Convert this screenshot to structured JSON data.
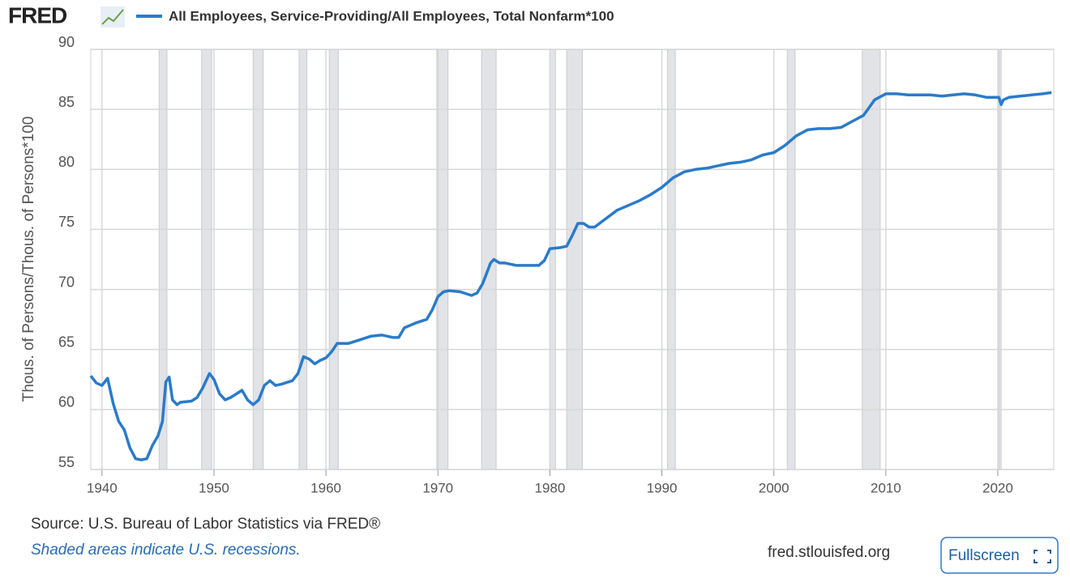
{
  "header": {
    "logo": "FRED"
  },
  "chart_data": {
    "type": "line",
    "y_label": "Thous. of Persons/Thous. of Persons*100",
    "source": "Source: U.S. Bureau of Labor Statistics via FRED®",
    "note": "Shaded areas indicate U.S. recessions.",
    "recessions": [
      [
        1945.1,
        1945.8
      ],
      [
        1948.9,
        1949.8
      ],
      [
        1953.5,
        1954.4
      ],
      [
        1957.6,
        1958.3
      ],
      [
        1960.3,
        1961.1
      ],
      [
        1969.9,
        1970.9
      ],
      [
        1973.9,
        1975.2
      ],
      [
        1980.0,
        1980.5
      ],
      [
        1981.5,
        1982.9
      ],
      [
        1990.5,
        1991.2
      ],
      [
        2001.2,
        2001.9
      ],
      [
        2007.9,
        2009.5
      ],
      [
        2020.1,
        2020.3
      ]
    ],
    "x": [
      1939,
      1939.5,
      1940,
      1940.5,
      1941,
      1941.5,
      1942,
      1942.5,
      1943,
      1943.5,
      1944,
      1944.5,
      1945,
      1945.4,
      1945.7,
      1946,
      1946.3,
      1946.7,
      1947,
      1948,
      1948.5,
      1949,
      1949.6,
      1950,
      1950.5,
      1951,
      1951.5,
      1952,
      1952.5,
      1953,
      1953.5,
      1954,
      1954.5,
      1955,
      1955.5,
      1956,
      1957,
      1957.5,
      1958,
      1958.5,
      1959,
      1959.5,
      1960,
      1960.5,
      1961,
      1962,
      1963,
      1964,
      1965,
      1966,
      1966.5,
      1967,
      1968,
      1969,
      1969.5,
      1970,
      1970.5,
      1971,
      1972,
      1973,
      1973.5,
      1974,
      1974.7,
      1975,
      1975.5,
      1976,
      1977,
      1978,
      1979,
      1979.5,
      1980,
      1981,
      1981.5,
      1982,
      1982.5,
      1983,
      1983.5,
      1984,
      1985,
      1986,
      1987,
      1988,
      1989,
      1990,
      1991,
      1992,
      1993,
      1994,
      1995,
      1996,
      1997,
      1998,
      1999,
      2000,
      2001,
      2002,
      2003,
      2004,
      2005,
      2006,
      2007,
      2008,
      2009,
      2010,
      2011,
      2012,
      2013,
      2014,
      2015,
      2016,
      2017,
      2018,
      2019,
      2020.1,
      2020.3,
      2020.5,
      2021,
      2022,
      2023,
      2024,
      2024.8
    ],
    "series": [
      {
        "name": "All Employees, Service-Providing/All Employees, Total Nonfarm*100",
        "color": "#2a7bca",
        "values": [
          62.8,
          62.2,
          62.0,
          62.6,
          60.5,
          59.0,
          58.3,
          56.8,
          55.9,
          55.8,
          55.9,
          57.0,
          57.8,
          59.0,
          62.3,
          62.7,
          60.8,
          60.4,
          60.6,
          60.7,
          61.0,
          61.8,
          63.0,
          62.5,
          61.3,
          60.8,
          61.0,
          61.3,
          61.6,
          60.8,
          60.4,
          60.8,
          62.0,
          62.4,
          62.0,
          62.1,
          62.4,
          63.0,
          64.4,
          64.2,
          63.8,
          64.1,
          64.3,
          64.8,
          65.5,
          65.5,
          65.8,
          66.1,
          66.2,
          66.0,
          66.0,
          66.8,
          67.2,
          67.5,
          68.3,
          69.4,
          69.8,
          69.9,
          69.8,
          69.5,
          69.7,
          70.5,
          72.2,
          72.5,
          72.2,
          72.2,
          72.0,
          72.0,
          72.0,
          72.4,
          73.4,
          73.5,
          73.6,
          74.5,
          75.5,
          75.5,
          75.2,
          75.2,
          75.9,
          76.6,
          77.0,
          77.4,
          77.9,
          78.5,
          79.3,
          79.8,
          80.0,
          80.1,
          80.3,
          80.5,
          80.6,
          80.8,
          81.2,
          81.4,
          82.0,
          82.8,
          83.3,
          83.4,
          83.4,
          83.5,
          84.0,
          84.5,
          85.8,
          86.3,
          86.3,
          86.2,
          86.2,
          86.2,
          86.1,
          86.2,
          86.3,
          86.2,
          86.0,
          86.0,
          85.4,
          85.8,
          86.0,
          86.1,
          86.2,
          86.3,
          86.4
        ]
      }
    ],
    "xlim": [
      1939,
      2025
    ],
    "xticks": [
      1940,
      1950,
      1960,
      1970,
      1980,
      1990,
      2000,
      2010,
      2020
    ],
    "ylim": [
      55,
      90
    ],
    "yticks": [
      55,
      60,
      65,
      70,
      75,
      80,
      85,
      90
    ],
    "grid": true
  },
  "footer": {
    "url": "fred.stlouisfed.org",
    "button": "Fullscreen"
  }
}
